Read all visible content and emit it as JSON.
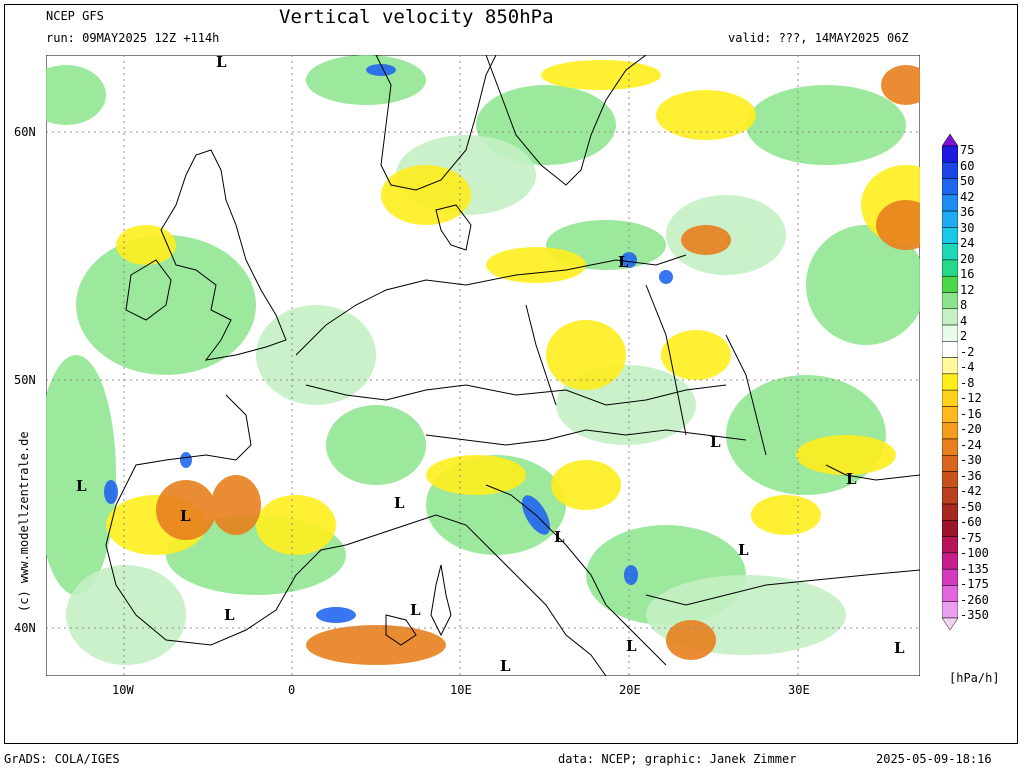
{
  "header": {
    "model": "NCEP GFS",
    "run": "run: 09MAY2025 12Z +114h",
    "title": "Vertical velocity 850hPa",
    "valid": "valid: ???, 14MAY2025 06Z"
  },
  "map": {
    "lat_labels": [
      "60N",
      "50N",
      "40N"
    ],
    "lon_labels": [
      "10W",
      "0",
      "10E",
      "20E",
      "30E"
    ],
    "low_marker": "L",
    "credit": "(c) www.modellzentrale.de",
    "background_color": "#ffffff",
    "land_border_color": "#000000",
    "grid_color": "#8c8c8c"
  },
  "colorbar": {
    "unit": "[hPa/h]",
    "levels": [
      "75",
      "60",
      "50",
      "42",
      "36",
      "30",
      "24",
      "20",
      "16",
      "12",
      "8",
      "4",
      "2",
      "-2",
      "-4",
      "-8",
      "-12",
      "-16",
      "-20",
      "-24",
      "-30",
      "-36",
      "-42",
      "-50",
      "-60",
      "-75",
      "-100",
      "-135",
      "-175",
      "-260",
      "-350"
    ],
    "colors": [
      "#7a12d6",
      "#1b1be0",
      "#1e46e6",
      "#2166ef",
      "#1f8cf2",
      "#1faaf2",
      "#1cc8e8",
      "#1ed8b8",
      "#25d88a",
      "#4cd64c",
      "#8be48b",
      "#c4f0c4",
      "#e8fae8",
      "#ffffff",
      "#fffaa0",
      "#ffee1e",
      "#ffd21e",
      "#ffb81e",
      "#f59b1e",
      "#e8801e",
      "#d8661e",
      "#c8521e",
      "#b84020",
      "#a82820",
      "#9c1428",
      "#b8145a",
      "#c81e8c",
      "#d43cbe",
      "#e066dc",
      "#eaa0ee",
      "#f4d2f6"
    ]
  },
  "footer": {
    "left": "GrADS: COLA/IGES",
    "center": "data: NCEP; graphic: Janek Zimmer",
    "right": "2025-05-09-18:16"
  }
}
